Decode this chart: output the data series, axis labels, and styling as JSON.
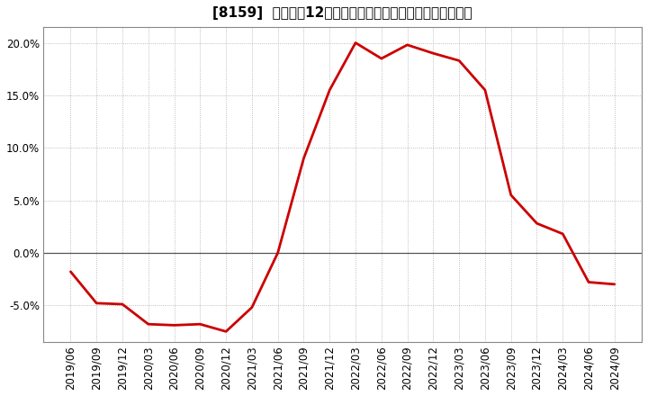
{
  "title": "[8159]  売上高の12か月移動合計の対前年同期増減率の推移",
  "line_color": "#cc0000",
  "background_color": "#ffffff",
  "plot_bg_color": "#ffffff",
  "grid_color": "#aaaaaa",
  "zero_line_color": "#555555",
  "ylim": [
    -0.085,
    0.215
  ],
  "yticks": [
    -0.05,
    0.0,
    0.05,
    0.1,
    0.15,
    0.2
  ],
  "dates": [
    "2019/06",
    "2019/09",
    "2019/12",
    "2020/03",
    "2020/06",
    "2020/09",
    "2020/12",
    "2021/03",
    "2021/06",
    "2021/09",
    "2021/12",
    "2022/03",
    "2022/06",
    "2022/09",
    "2022/12",
    "2023/03",
    "2023/06",
    "2023/09",
    "2023/12",
    "2024/03",
    "2024/06",
    "2024/09"
  ],
  "values": [
    -0.018,
    -0.048,
    -0.049,
    -0.068,
    -0.069,
    -0.068,
    -0.075,
    -0.052,
    0.0,
    0.09,
    0.155,
    0.2,
    0.185,
    0.198,
    0.19,
    0.183,
    0.155,
    0.055,
    0.028,
    0.018,
    -0.028,
    -0.03
  ],
  "title_fontsize": 11,
  "tick_fontsize": 8.5,
  "line_width": 2.0
}
